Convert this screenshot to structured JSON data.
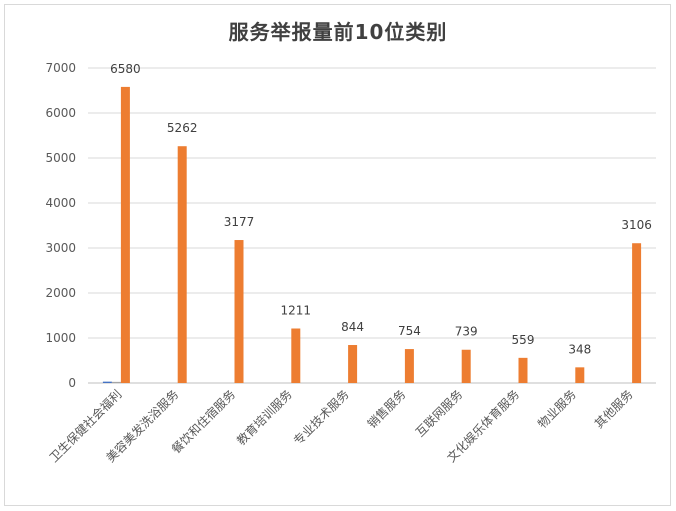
{
  "chart_data": {
    "type": "bar",
    "title": "服务举报量前10位类别",
    "categories": [
      "卫生保健社会福利",
      "美容美发洗浴服务",
      "餐饮和住宿服务",
      "教育培训服务",
      "专业技术服务",
      "销售服务",
      "互联网服务",
      "文化娱乐体育服务",
      "物业服务",
      "其他服务"
    ],
    "series": [
      {
        "color": "#4472c4",
        "values": [
          30,
          0,
          0,
          0,
          0,
          0,
          0,
          0,
          0,
          0
        ],
        "labels_shown": false
      },
      {
        "color": "#a5a5a5",
        "values": [
          25,
          0,
          0,
          0,
          0,
          0,
          0,
          0,
          0,
          0
        ],
        "labels_shown": false
      },
      {
        "color": "#ed7d31",
        "values": [
          6580,
          5262,
          3177,
          1211,
          844,
          754,
          739,
          559,
          348,
          3106
        ],
        "labels_shown": true
      }
    ],
    "ylim": [
      0,
      7000
    ],
    "yticks": [
      0,
      1000,
      2000,
      3000,
      4000,
      5000,
      6000,
      7000
    ],
    "grid": true,
    "legend": "none",
    "xlabel": "",
    "ylabel": ""
  }
}
